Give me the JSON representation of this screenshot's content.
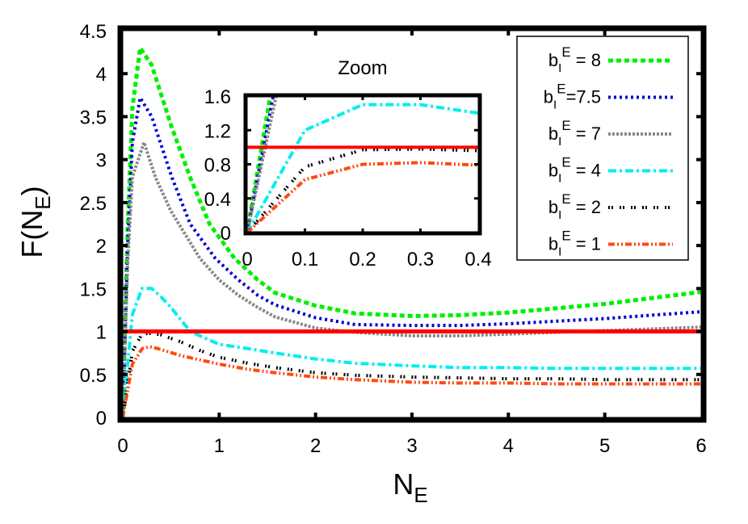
{
  "chart_data": [
    {
      "id": "main",
      "type": "line",
      "title": "",
      "xlabel": "N_E",
      "ylabel": "F(N_E)",
      "xlim": [
        0,
        6
      ],
      "ylim": [
        0,
        4.5
      ],
      "xticks": [
        0,
        1,
        2,
        3,
        4,
        5,
        6
      ],
      "yticks": [
        0,
        0.5,
        1,
        1.5,
        2,
        2.5,
        3,
        3.5,
        4,
        4.5
      ],
      "xtick_labels": [
        "0",
        "1",
        "2",
        "3",
        "4",
        "5",
        "6"
      ],
      "ytick_labels": [
        "0",
        "0.5",
        "1",
        "1.5",
        "2",
        "2.5",
        "3",
        "3.5",
        "4",
        "4.5"
      ],
      "grid": false,
      "legend_position": "upper right",
      "reference_line": {
        "y": 1.0,
        "color": "#ff0000",
        "style": "solid"
      },
      "series": [
        {
          "name": "b_I^E = 8",
          "color": "#00ee00",
          "dash": "6,4",
          "width": 5,
          "x": [
            0,
            0.05,
            0.1,
            0.18,
            0.3,
            0.5,
            0.7,
            0.9,
            1.16,
            1.4,
            1.58,
            2.0,
            2.41,
            3.0,
            3.5,
            4.0,
            4.5,
            5.0,
            5.5,
            6.0
          ],
          "y": [
            0,
            2.2,
            3.6,
            4.3,
            4.1,
            3.4,
            2.79,
            2.25,
            1.85,
            1.6,
            1.45,
            1.3,
            1.21,
            1.18,
            1.19,
            1.22,
            1.27,
            1.32,
            1.39,
            1.46
          ]
        },
        {
          "name": "b_I^E=7.5",
          "color": "#0000cc",
          "dash": "3,4",
          "width": 4,
          "x": [
            0,
            0.05,
            0.1,
            0.18,
            0.3,
            0.51,
            0.7,
            0.96,
            1.2,
            1.4,
            1.58,
            2.0,
            2.41,
            3.0,
            3.5,
            4.0,
            4.5,
            5.0,
            5.5,
            6.0
          ],
          "y": [
            0,
            2.0,
            3.2,
            3.72,
            3.5,
            2.79,
            2.25,
            1.85,
            1.6,
            1.42,
            1.31,
            1.16,
            1.08,
            1.07,
            1.07,
            1.09,
            1.12,
            1.15,
            1.19,
            1.23
          ]
        },
        {
          "name": "b_I^E = 7",
          "color": "#888888",
          "dash": "3,2",
          "width": 4,
          "x": [
            0,
            0.05,
            0.1,
            0.22,
            0.34,
            0.5,
            0.8,
            1.0,
            1.2,
            1.4,
            1.58,
            2.0,
            2.41,
            3.0,
            3.5,
            4.0,
            4.5,
            5.0,
            5.5,
            6.0
          ],
          "y": [
            0,
            1.8,
            2.8,
            3.2,
            2.79,
            2.4,
            1.85,
            1.6,
            1.42,
            1.28,
            1.17,
            1.04,
            0.99,
            0.95,
            0.95,
            0.97,
            0.99,
            1.01,
            1.03,
            1.05
          ]
        },
        {
          "name": "b_I^E = 4",
          "color": "#00eeee",
          "dash": "10,4,3,4",
          "width": 4,
          "x": [
            0,
            0.1,
            0.2,
            0.25,
            0.3,
            0.4,
            0.5,
            0.7,
            1.0,
            1.3,
            1.58,
            2.0,
            2.41,
            3.0,
            3.5,
            4.0,
            4.5,
            5.0,
            5.5,
            6.0
          ],
          "y": [
            0,
            1.2,
            1.5,
            1.5,
            1.5,
            1.4,
            1.28,
            1.0,
            0.85,
            0.8,
            0.75,
            0.68,
            0.63,
            0.6,
            0.58,
            0.58,
            0.57,
            0.57,
            0.57,
            0.57
          ]
        },
        {
          "name": "b_I^E = 2",
          "color": "#000000",
          "dash": "2,2,2,8",
          "width": 4,
          "x": [
            0,
            0.1,
            0.2,
            0.3,
            0.4,
            0.6,
            0.8,
            1.0,
            1.3,
            1.58,
            2.0,
            2.41,
            3.0,
            3.5,
            4.0,
            4.5,
            5.0,
            5.5,
            6.0
          ],
          "y": [
            0,
            0.77,
            0.97,
            0.98,
            0.96,
            0.88,
            0.78,
            0.7,
            0.63,
            0.58,
            0.52,
            0.49,
            0.47,
            0.46,
            0.45,
            0.45,
            0.44,
            0.44,
            0.44
          ]
        },
        {
          "name": "b_I^E = 1",
          "color": "#ff4a12",
          "dash": "8,3,2,3,2,3",
          "width": 4,
          "x": [
            0,
            0.1,
            0.2,
            0.27,
            0.3,
            0.4,
            0.6,
            0.8,
            1.0,
            1.3,
            1.58,
            2.0,
            2.41,
            3.0,
            3.5,
            4.0,
            4.5,
            5.0,
            5.5,
            6.0
          ],
          "y": [
            0,
            0.62,
            0.8,
            0.82,
            0.82,
            0.79,
            0.72,
            0.67,
            0.62,
            0.56,
            0.52,
            0.47,
            0.44,
            0.41,
            0.4,
            0.4,
            0.39,
            0.39,
            0.39,
            0.39
          ]
        }
      ]
    },
    {
      "id": "inset",
      "type": "line",
      "title": "Zoom",
      "xlabel": "",
      "ylabel": "",
      "xlim": [
        0,
        0.4
      ],
      "ylim": [
        0,
        1.6
      ],
      "xticks": [
        0,
        0.1,
        0.2,
        0.3,
        0.4
      ],
      "yticks": [
        0,
        0.4,
        0.8,
        1.2,
        1.6
      ],
      "xtick_labels": [
        "0",
        "0.1",
        "0.2",
        "0.3",
        "0.4"
      ],
      "ytick_labels": [
        "0",
        "0.4",
        "0.8",
        "1.2",
        "1.6"
      ],
      "grid": false,
      "reference_line": {
        "y": 1.0,
        "color": "#ff0000",
        "style": "solid"
      },
      "series": [
        {
          "name": "b_I^E = 8",
          "x": [
            0,
            0.04
          ],
          "y": [
            0,
            1.6
          ]
        },
        {
          "name": "b_I^E=7.5",
          "x": [
            0,
            0.045
          ],
          "y": [
            0,
            1.6
          ]
        },
        {
          "name": "b_I^E = 7",
          "x": [
            0,
            0.05
          ],
          "y": [
            0,
            1.6
          ]
        },
        {
          "name": "b_I^E = 4",
          "x": [
            0,
            0.1,
            0.2,
            0.3,
            0.4
          ],
          "y": [
            0,
            1.2,
            1.5,
            1.5,
            1.4
          ]
        },
        {
          "name": "b_I^E = 2",
          "x": [
            0,
            0.1,
            0.2,
            0.3,
            0.4
          ],
          "y": [
            0,
            0.77,
            0.97,
            0.98,
            0.96
          ]
        },
        {
          "name": "b_I^E = 1",
          "x": [
            0,
            0.1,
            0.2,
            0.3,
            0.4
          ],
          "y": [
            0,
            0.62,
            0.8,
            0.82,
            0.79
          ]
        }
      ]
    }
  ],
  "labels": {
    "xlabel_main": "N",
    "xlabel_sub": "E",
    "ylabel_prefix": "F(N",
    "ylabel_sub": "E",
    "ylabel_suffix": ")",
    "inset_title": "Zoom"
  },
  "legend": [
    {
      "base": "b",
      "sub": "I",
      "sup": "E",
      "rest": " = 8"
    },
    {
      "base": "b",
      "sub": "I",
      "sup": "E",
      "rest": "=7.5"
    },
    {
      "base": "b",
      "sub": "I",
      "sup": "E",
      "rest": " = 7"
    },
    {
      "base": "b",
      "sub": "I",
      "sup": "E",
      "rest": " = 4"
    },
    {
      "base": "b",
      "sub": "I",
      "sup": "E",
      "rest": " = 2"
    },
    {
      "base": "b",
      "sub": "I",
      "sup": "E",
      "rest": " = 1"
    }
  ]
}
